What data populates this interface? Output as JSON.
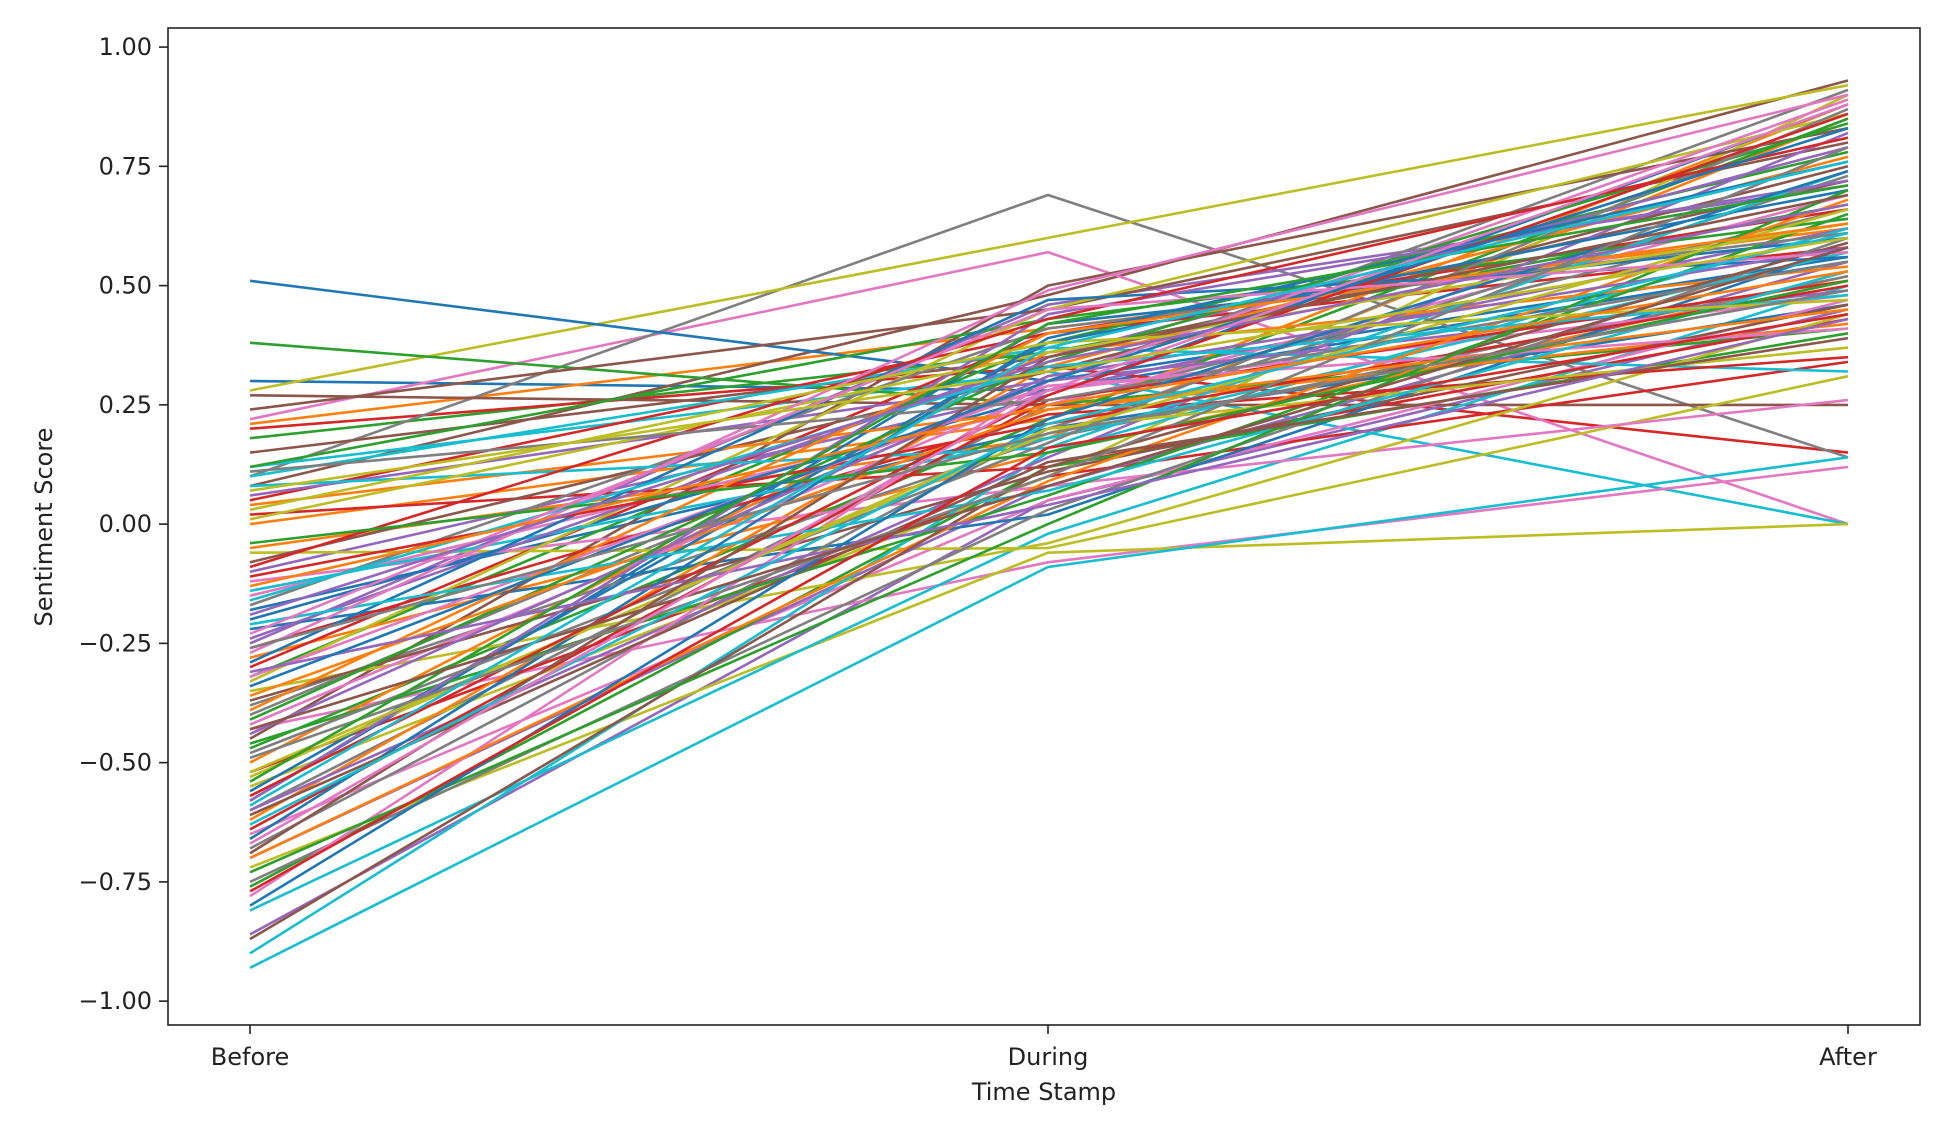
{
  "chart_data": {
    "type": "line",
    "title": "",
    "xlabel": "Time Stamp",
    "ylabel": "Sentiment Score",
    "categories": [
      "Before",
      "During",
      "After"
    ],
    "ylim": [
      -1.05,
      1.04
    ],
    "yticks": [
      -1.0,
      -0.75,
      -0.5,
      -0.25,
      0.0,
      0.25,
      0.5,
      0.75,
      1.0
    ],
    "ytick_labels": [
      "−1.00",
      "−0.75",
      "−0.50",
      "−0.25",
      "0.00",
      "0.25",
      "0.50",
      "0.75",
      "1.00"
    ],
    "grid": false,
    "legend": "none",
    "palette": [
      "#1f77b4",
      "#ff7f0e",
      "#2ca02c",
      "#d62728",
      "#9467bd",
      "#8c564b",
      "#e377c2",
      "#7f7f7f",
      "#bcbd22",
      "#17becf"
    ],
    "series": [
      {
        "values": [
          0.3,
          0.28,
          0.55
        ]
      },
      {
        "values": [
          0.21,
          0.41,
          0.62
        ]
      },
      {
        "values": [
          0.18,
          0.36,
          0.67
        ]
      },
      {
        "values": [
          0.2,
          0.33,
          0.15
        ]
      },
      {
        "values": [
          -0.86,
          0.05,
          0.45
        ]
      },
      {
        "values": [
          0.08,
          0.48,
          0.93
        ]
      },
      {
        "values": [
          0.22,
          0.57,
          0.0
        ]
      },
      {
        "values": [
          0.1,
          0.69,
          0.14
        ]
      },
      {
        "values": [
          0.28,
          0.6,
          0.92
        ]
      },
      {
        "values": [
          0.12,
          0.32,
          0.0
        ]
      },
      {
        "values": [
          0.51,
          0.3,
          0.56
        ]
      },
      {
        "values": [
          -0.05,
          0.18,
          0.85
        ]
      },
      {
        "values": [
          0.38,
          0.25,
          0.41
        ]
      },
      {
        "values": [
          0.05,
          0.4,
          0.58
        ]
      },
      {
        "values": [
          -0.25,
          0.46,
          0.71
        ]
      },
      {
        "values": [
          0.27,
          0.25,
          0.25
        ]
      },
      {
        "values": [
          -0.43,
          -0.08,
          0.12
        ]
      },
      {
        "values": [
          -0.6,
          0.25,
          0.66
        ]
      },
      {
        "values": [
          -0.72,
          -0.06,
          0.0
        ]
      },
      {
        "values": [
          -0.81,
          -0.02,
          0.5
        ]
      },
      {
        "values": [
          -0.18,
          0.2,
          0.46
        ]
      },
      {
        "values": [
          0.0,
          0.22,
          0.88
        ]
      },
      {
        "values": [
          -0.32,
          0.38,
          0.78
        ]
      },
      {
        "values": [
          -0.52,
          0.1,
          0.34
        ]
      },
      {
        "values": [
          -0.1,
          0.28,
          0.62
        ]
      },
      {
        "values": [
          0.15,
          0.35,
          0.72
        ]
      },
      {
        "values": [
          -0.65,
          0.05,
          0.47
        ]
      },
      {
        "values": [
          -0.4,
          0.3,
          0.91
        ]
      },
      {
        "values": [
          -0.06,
          -0.05,
          0.31
        ]
      },
      {
        "values": [
          -0.93,
          -0.09,
          0.14
        ]
      },
      {
        "values": [
          -0.58,
          0.42,
          0.6
        ]
      },
      {
        "values": [
          -0.28,
          0.15,
          0.52
        ]
      },
      {
        "values": [
          -0.47,
          0.22,
          0.85
        ]
      },
      {
        "values": [
          0.02,
          0.12,
          0.43
        ]
      },
      {
        "values": [
          -0.7,
          0.08,
          0.55
        ]
      },
      {
        "values": [
          0.24,
          0.45,
          0.8
        ]
      },
      {
        "values": [
          -0.15,
          0.25,
          0.69
        ]
      },
      {
        "values": [
          -0.38,
          0.18,
          0.52
        ]
      },
      {
        "values": [
          -0.55,
          0.1,
          0.9
        ]
      },
      {
        "values": [
          0.1,
          0.37,
          0.32
        ]
      },
      {
        "values": [
          -0.22,
          0.02,
          0.58
        ]
      },
      {
        "values": [
          -0.62,
          0.33,
          0.77
        ]
      },
      {
        "values": [
          -0.76,
          0.12,
          0.4
        ]
      },
      {
        "values": [
          -0.3,
          0.4,
          0.66
        ]
      },
      {
        "values": [
          0.06,
          0.3,
          0.49
        ]
      },
      {
        "values": [
          -0.45,
          0.5,
          0.83
        ]
      },
      {
        "values": [
          -0.12,
          0.08,
          0.26
        ]
      },
      {
        "values": [
          -0.68,
          0.2,
          0.73
        ]
      },
      {
        "values": [
          -0.35,
          -0.04,
          0.44
        ]
      },
      {
        "values": [
          -0.9,
          0.15,
          0.62
        ]
      },
      {
        "values": [
          -0.2,
          0.27,
          0.88
        ]
      },
      {
        "values": [
          -0.5,
          0.36,
          0.54
        ]
      },
      {
        "values": [
          0.12,
          0.43,
          0.64
        ]
      },
      {
        "values": [
          -0.26,
          0.23,
          0.35
        ]
      },
      {
        "values": [
          -0.6,
          0.14,
          0.82
        ]
      },
      {
        "values": [
          -0.08,
          0.32,
          0.75
        ]
      },
      {
        "values": [
          -0.42,
          0.28,
          0.48
        ]
      },
      {
        "values": [
          -0.75,
          0.03,
          0.6
        ]
      },
      {
        "values": [
          -0.33,
          0.45,
          0.86
        ]
      },
      {
        "values": [
          -0.14,
          0.18,
          0.57
        ]
      },
      {
        "values": [
          -0.56,
          0.38,
          0.7
        ]
      },
      {
        "values": [
          0.04,
          0.24,
          0.42
        ]
      },
      {
        "values": [
          -0.46,
          0.06,
          0.65
        ]
      },
      {
        "values": [
          -0.64,
          0.26,
          0.51
        ]
      },
      {
        "values": [
          -0.24,
          0.35,
          0.79
        ]
      },
      {
        "values": [
          -0.37,
          0.11,
          0.46
        ]
      },
      {
        "values": [
          -0.78,
          0.3,
          0.89
        ]
      },
      {
        "values": [
          -0.17,
          0.41,
          0.61
        ]
      },
      {
        "values": [
          -0.53,
          0.2,
          0.37
        ]
      },
      {
        "values": [
          0.08,
          0.16,
          0.74
        ]
      },
      {
        "values": [
          -0.29,
          0.47,
          0.56
        ]
      },
      {
        "values": [
          -0.7,
          0.09,
          0.68
        ]
      },
      {
        "values": [
          -0.41,
          0.34,
          0.84
        ]
      },
      {
        "values": [
          -0.11,
          0.21,
          0.5
        ]
      },
      {
        "values": [
          -0.58,
          0.44,
          0.72
        ]
      },
      {
        "values": [
          -0.87,
          0.12,
          0.59
        ]
      },
      {
        "values": [
          -0.32,
          0.29,
          0.41
        ]
      },
      {
        "values": [
          -0.48,
          0.17,
          0.87
        ]
      },
      {
        "values": [
          0.01,
          0.36,
          0.63
        ]
      },
      {
        "values": [
          -0.21,
          0.07,
          0.53
        ]
      },
      {
        "values": [
          -0.66,
          0.39,
          0.76
        ]
      },
      {
        "values": [
          -0.36,
          0.24,
          0.45
        ]
      },
      {
        "values": [
          -0.73,
          0.0,
          0.7
        ]
      },
      {
        "values": [
          -0.09,
          0.43,
          0.81
        ]
      },
      {
        "values": [
          -0.44,
          0.31,
          0.58
        ]
      },
      {
        "values": [
          -0.61,
          0.13,
          0.39
        ]
      },
      {
        "values": [
          -0.27,
          0.49,
          0.9
        ]
      },
      {
        "values": [
          0.11,
          0.26,
          0.55
        ]
      },
      {
        "values": [
          -0.52,
          0.19,
          0.66
        ]
      },
      {
        "values": [
          -0.16,
          0.33,
          0.48
        ]
      },
      {
        "values": [
          -0.8,
          0.22,
          0.74
        ]
      },
      {
        "values": [
          -0.39,
          0.4,
          0.63
        ]
      },
      {
        "values": [
          -0.04,
          0.15,
          0.51
        ]
      },
      {
        "values": [
          -0.57,
          0.27,
          0.86
        ]
      },
      {
        "values": [
          -0.31,
          0.04,
          0.43
        ]
      },
      {
        "values": [
          -0.69,
          0.35,
          0.69
        ]
      },
      {
        "values": [
          -0.23,
          0.45,
          0.57
        ]
      },
      {
        "values": [
          -0.49,
          0.1,
          0.79
        ]
      },
      {
        "values": [
          0.03,
          0.38,
          0.47
        ]
      },
      {
        "values": [
          -0.63,
          0.21,
          0.61
        ]
      },
      {
        "values": [
          -0.34,
          0.3,
          0.83
        ]
      },
      {
        "values": [
          -0.13,
          0.25,
          0.53
        ]
      },
      {
        "values": [
          -0.54,
          0.42,
          0.71
        ]
      },
      {
        "values": [
          -0.77,
          0.16,
          0.44
        ]
      },
      {
        "values": [
          -0.19,
          0.34,
          0.67
        ]
      },
      {
        "values": [
          -0.43,
          0.08,
          0.58
        ]
      },
      {
        "values": [
          -0.67,
          0.28,
          0.88
        ]
      },
      {
        "values": [
          -0.26,
          0.19,
          0.49
        ]
      },
      {
        "values": [
          0.07,
          0.32,
          0.6
        ]
      },
      {
        "values": [
          -0.59,
          0.37,
          0.76
        ]
      }
    ]
  }
}
